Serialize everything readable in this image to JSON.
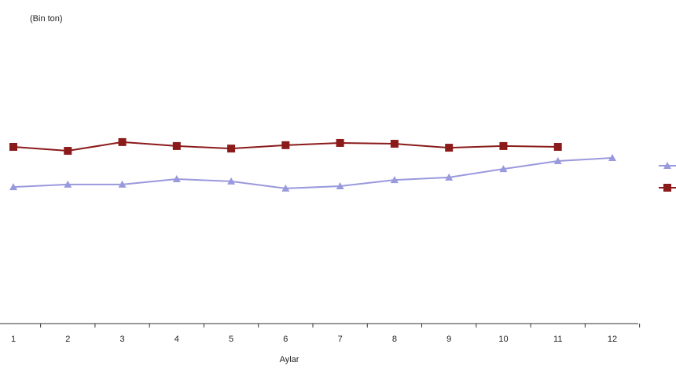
{
  "chart_data": {
    "type": "line",
    "title": "(Bin ton)",
    "x_label": "Aylar",
    "categories": [
      "1",
      "2",
      "3",
      "4",
      "5",
      "6",
      "7",
      "8",
      "9",
      "10",
      "11",
      "12"
    ],
    "series": [
      {
        "color": "#9999dd",
        "marker": "triangle",
        "values": [
          48.3,
          49.2,
          49.2,
          51.1,
          50.3,
          47.8,
          48.6,
          50.8,
          51.7,
          54.7,
          57.5,
          58.6
        ]
      },
      {
        "color": "#8b1a1a",
        "marker": "square",
        "values": [
          62.5,
          61.1,
          64.2,
          62.8,
          61.9,
          63.1,
          63.9,
          63.6,
          62.2,
          62.8,
          62.5,
          null
        ]
      }
    ],
    "ylim": [
      0,
      100
    ]
  }
}
